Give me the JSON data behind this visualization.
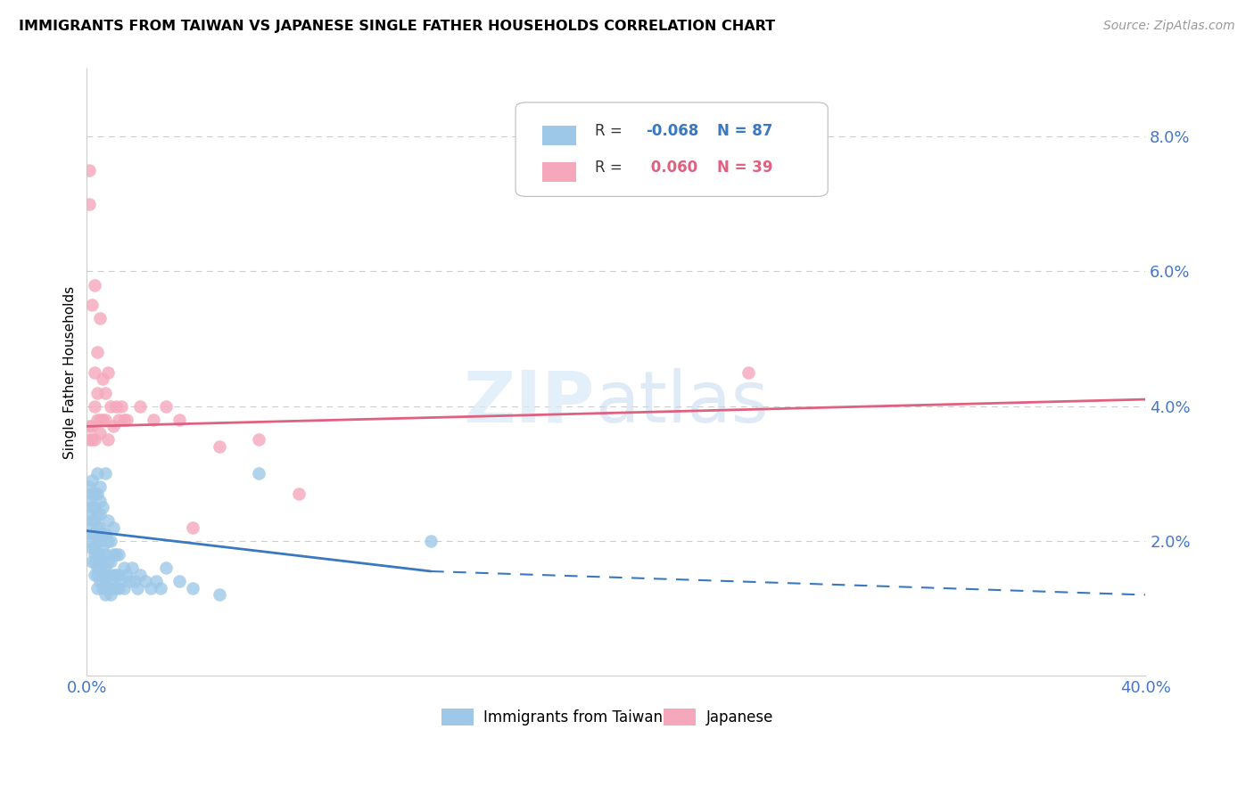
{
  "title": "IMMIGRANTS FROM TAIWAN VS JAPANESE SINGLE FATHER HOUSEHOLDS CORRELATION CHART",
  "source": "Source: ZipAtlas.com",
  "ylabel": "Single Father Households",
  "xlim": [
    0.0,
    0.4
  ],
  "ylim": [
    0.0,
    0.09
  ],
  "yticks": [
    0.0,
    0.02,
    0.04,
    0.06,
    0.08
  ],
  "ytick_labels": [
    "",
    "2.0%",
    "4.0%",
    "6.0%",
    "8.0%"
  ],
  "xticks": [
    0.0,
    0.05,
    0.1,
    0.15,
    0.2,
    0.25,
    0.3,
    0.35,
    0.4
  ],
  "xtick_labels": [
    "0.0%",
    "",
    "",
    "",
    "",
    "",
    "",
    "",
    "40.0%"
  ],
  "taiwan_R": -0.068,
  "taiwan_N": 87,
  "japanese_R": 0.06,
  "japanese_N": 39,
  "taiwan_color": "#9ec8e8",
  "japanese_color": "#f5a8bc",
  "taiwan_line_color": "#3a78c0",
  "japanese_line_color": "#e06080",
  "axis_color": "#4477cc",
  "grid_color": "#cccccc",
  "taiwan_line_solid_end": 0.13,
  "taiwan_line_start_y": 0.0215,
  "taiwan_line_end_y": 0.0155,
  "taiwan_line_dash_end_y": 0.012,
  "japanese_line_start_y": 0.037,
  "japanese_line_end_y": 0.041,
  "taiwan_x": [
    0.001,
    0.001,
    0.001,
    0.001,
    0.001,
    0.002,
    0.002,
    0.002,
    0.002,
    0.002,
    0.002,
    0.002,
    0.003,
    0.003,
    0.003,
    0.003,
    0.003,
    0.003,
    0.003,
    0.003,
    0.004,
    0.004,
    0.004,
    0.004,
    0.004,
    0.004,
    0.004,
    0.004,
    0.004,
    0.005,
    0.005,
    0.005,
    0.005,
    0.005,
    0.005,
    0.005,
    0.005,
    0.006,
    0.006,
    0.006,
    0.006,
    0.006,
    0.006,
    0.007,
    0.007,
    0.007,
    0.007,
    0.007,
    0.007,
    0.008,
    0.008,
    0.008,
    0.008,
    0.008,
    0.009,
    0.009,
    0.009,
    0.009,
    0.01,
    0.01,
    0.01,
    0.01,
    0.011,
    0.011,
    0.011,
    0.012,
    0.012,
    0.012,
    0.013,
    0.014,
    0.014,
    0.015,
    0.016,
    0.017,
    0.018,
    0.019,
    0.02,
    0.022,
    0.024,
    0.026,
    0.028,
    0.03,
    0.035,
    0.04,
    0.05,
    0.065,
    0.13
  ],
  "taiwan_y": [
    0.02,
    0.022,
    0.024,
    0.026,
    0.028,
    0.017,
    0.019,
    0.021,
    0.023,
    0.025,
    0.027,
    0.029,
    0.015,
    0.017,
    0.018,
    0.019,
    0.021,
    0.023,
    0.025,
    0.027,
    0.013,
    0.015,
    0.016,
    0.018,
    0.02,
    0.022,
    0.024,
    0.027,
    0.03,
    0.014,
    0.016,
    0.018,
    0.02,
    0.022,
    0.024,
    0.026,
    0.028,
    0.013,
    0.015,
    0.017,
    0.019,
    0.021,
    0.025,
    0.012,
    0.014,
    0.016,
    0.018,
    0.021,
    0.03,
    0.013,
    0.015,
    0.017,
    0.02,
    0.023,
    0.012,
    0.014,
    0.017,
    0.02,
    0.013,
    0.015,
    0.018,
    0.022,
    0.013,
    0.015,
    0.018,
    0.013,
    0.015,
    0.018,
    0.014,
    0.013,
    0.016,
    0.015,
    0.014,
    0.016,
    0.014,
    0.013,
    0.015,
    0.014,
    0.013,
    0.014,
    0.013,
    0.016,
    0.014,
    0.013,
    0.012,
    0.03,
    0.02
  ],
  "japanese_x": [
    0.001,
    0.001,
    0.001,
    0.001,
    0.002,
    0.002,
    0.002,
    0.003,
    0.003,
    0.003,
    0.003,
    0.004,
    0.004,
    0.004,
    0.005,
    0.005,
    0.005,
    0.006,
    0.006,
    0.007,
    0.007,
    0.008,
    0.008,
    0.009,
    0.01,
    0.011,
    0.012,
    0.013,
    0.014,
    0.015,
    0.02,
    0.025,
    0.03,
    0.035,
    0.04,
    0.05,
    0.065,
    0.08,
    0.25
  ],
  "japanese_y": [
    0.035,
    0.037,
    0.07,
    0.075,
    0.035,
    0.037,
    0.055,
    0.035,
    0.04,
    0.045,
    0.058,
    0.038,
    0.042,
    0.048,
    0.036,
    0.038,
    0.053,
    0.038,
    0.044,
    0.038,
    0.042,
    0.035,
    0.045,
    0.04,
    0.037,
    0.04,
    0.038,
    0.04,
    0.038,
    0.038,
    0.04,
    0.038,
    0.04,
    0.038,
    0.022,
    0.034,
    0.035,
    0.027,
    0.045
  ]
}
